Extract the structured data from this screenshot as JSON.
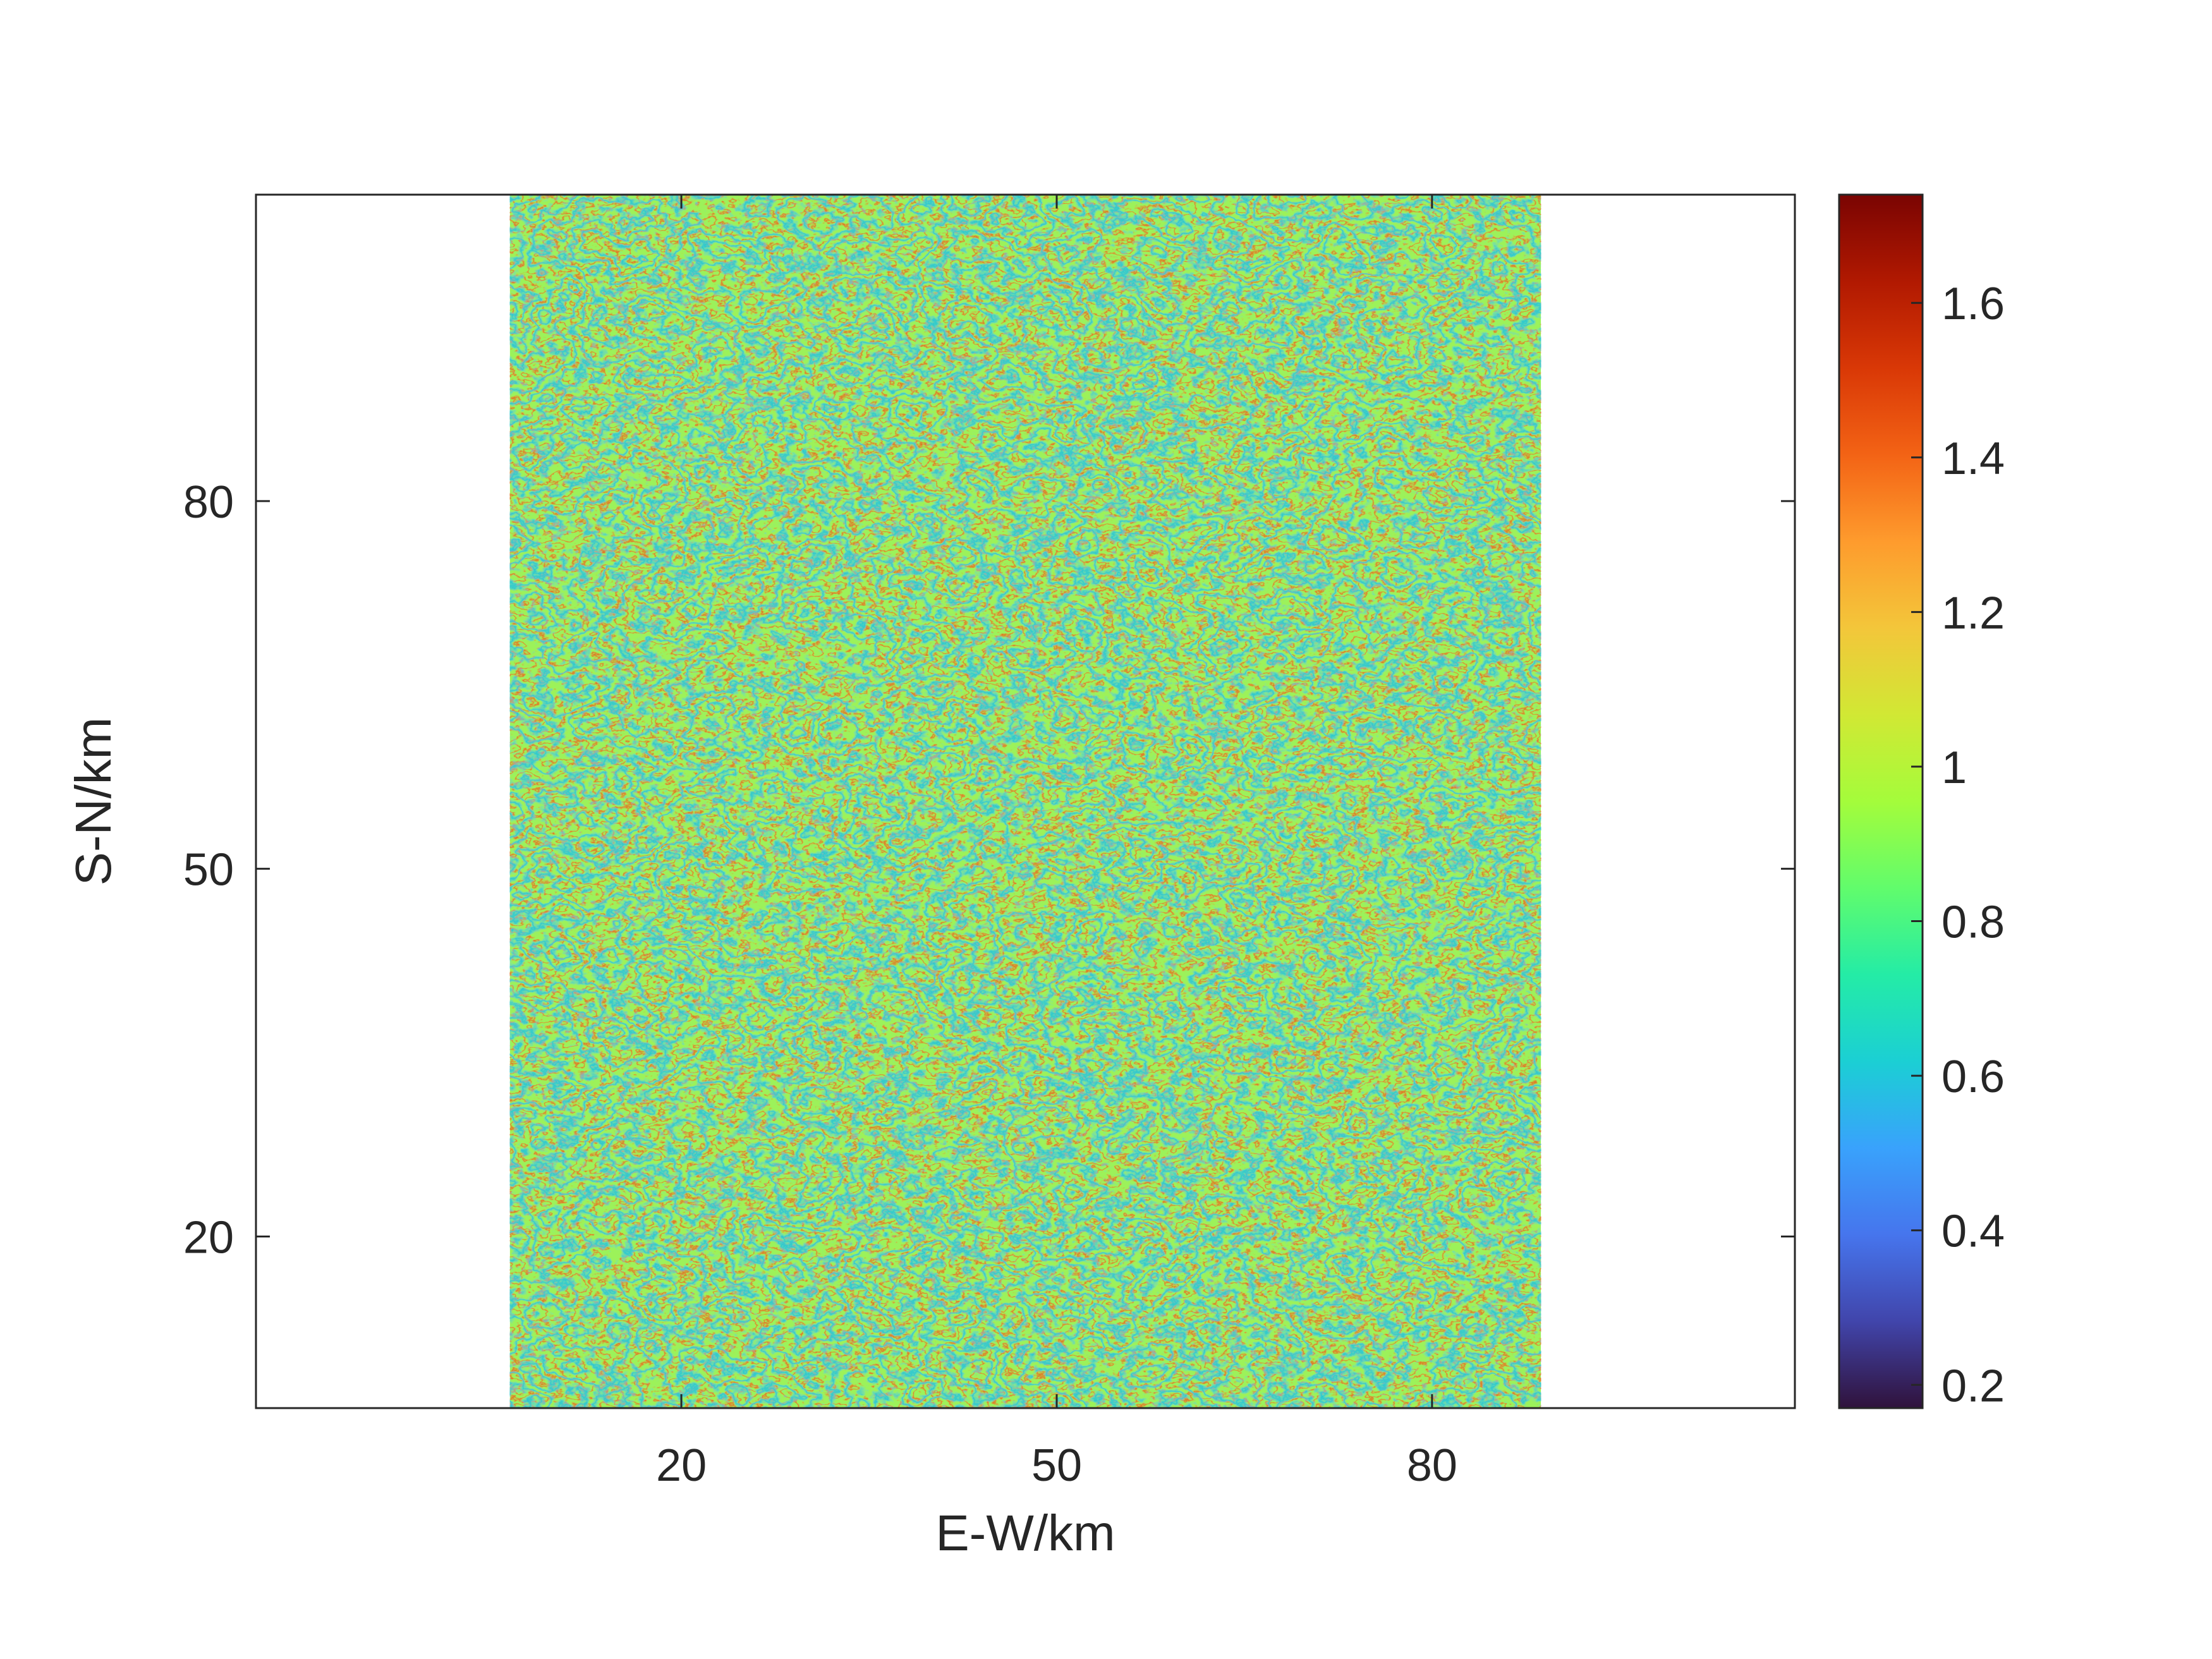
{
  "chart_data": {
    "type": "heatmap",
    "title": "",
    "xlabel": "E-W/km",
    "ylabel": "S-N/km",
    "xlim": [
      -14,
      109
    ],
    "ylim": [
      6,
      105
    ],
    "x_ticks": [
      20,
      50,
      80
    ],
    "y_ticks": [
      20,
      50,
      80
    ],
    "image_extent": {
      "x": [
        6.3,
        88.7
      ],
      "y": [
        6,
        105
      ]
    },
    "background_color": "#9cf25a",
    "colorbar": {
      "range": [
        0.17,
        1.74
      ],
      "ticks": [
        0.2,
        0.4,
        0.6,
        0.8,
        1,
        1.2,
        1.4,
        1.6
      ],
      "tick_labels": [
        "0.2",
        "0.4",
        "0.6",
        "0.8",
        "1",
        "1.2",
        "1.4",
        "1.6"
      ],
      "colormap": "turbo",
      "stops": [
        "#30123b",
        "#4145ab",
        "#4675ed",
        "#39a2fc",
        "#1bcfd4",
        "#24eca6",
        "#61fc6c",
        "#a4fc3b",
        "#d1e834",
        "#f3c63a",
        "#fe9b2d",
        "#f36315",
        "#d93806",
        "#b11901",
        "#7a0402"
      ]
    },
    "grid": false
  }
}
